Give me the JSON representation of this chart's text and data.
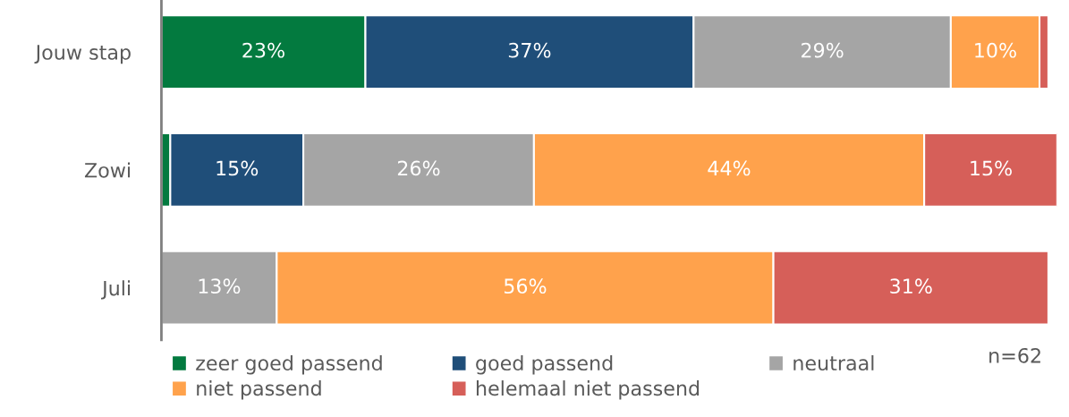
{
  "chart_data": {
    "type": "bar",
    "orientation": "horizontal",
    "stacked": true,
    "categories": [
      "Jouw stap",
      "Zowi",
      "Juli"
    ],
    "series": [
      {
        "name": "zeer goed passend",
        "color": "#037a3f",
        "values": [
          23,
          1,
          0
        ],
        "value_labels": [
          "23%",
          null,
          null
        ]
      },
      {
        "name": "goed passend",
        "color": "#1f4e79",
        "values": [
          37,
          15,
          0
        ],
        "value_labels": [
          "37%",
          "15%",
          null
        ]
      },
      {
        "name": "neutraal",
        "color": "#a5a5a5",
        "values": [
          29,
          26,
          13
        ],
        "value_labels": [
          "29%",
          "26%",
          "13%"
        ]
      },
      {
        "name": "niet passend",
        "color": "#ffa24c",
        "values": [
          10,
          44,
          56
        ],
        "value_labels": [
          "10%",
          "44%",
          "56%"
        ]
      },
      {
        "name": "helemaal niet passend",
        "color": "#d65f59",
        "values": [
          1,
          15,
          31
        ],
        "value_labels": [
          null,
          "15%",
          "31%"
        ]
      }
    ],
    "annotations": [
      "n=62"
    ],
    "legend": "bottom",
    "grid": false,
    "tick_labels": "y"
  }
}
